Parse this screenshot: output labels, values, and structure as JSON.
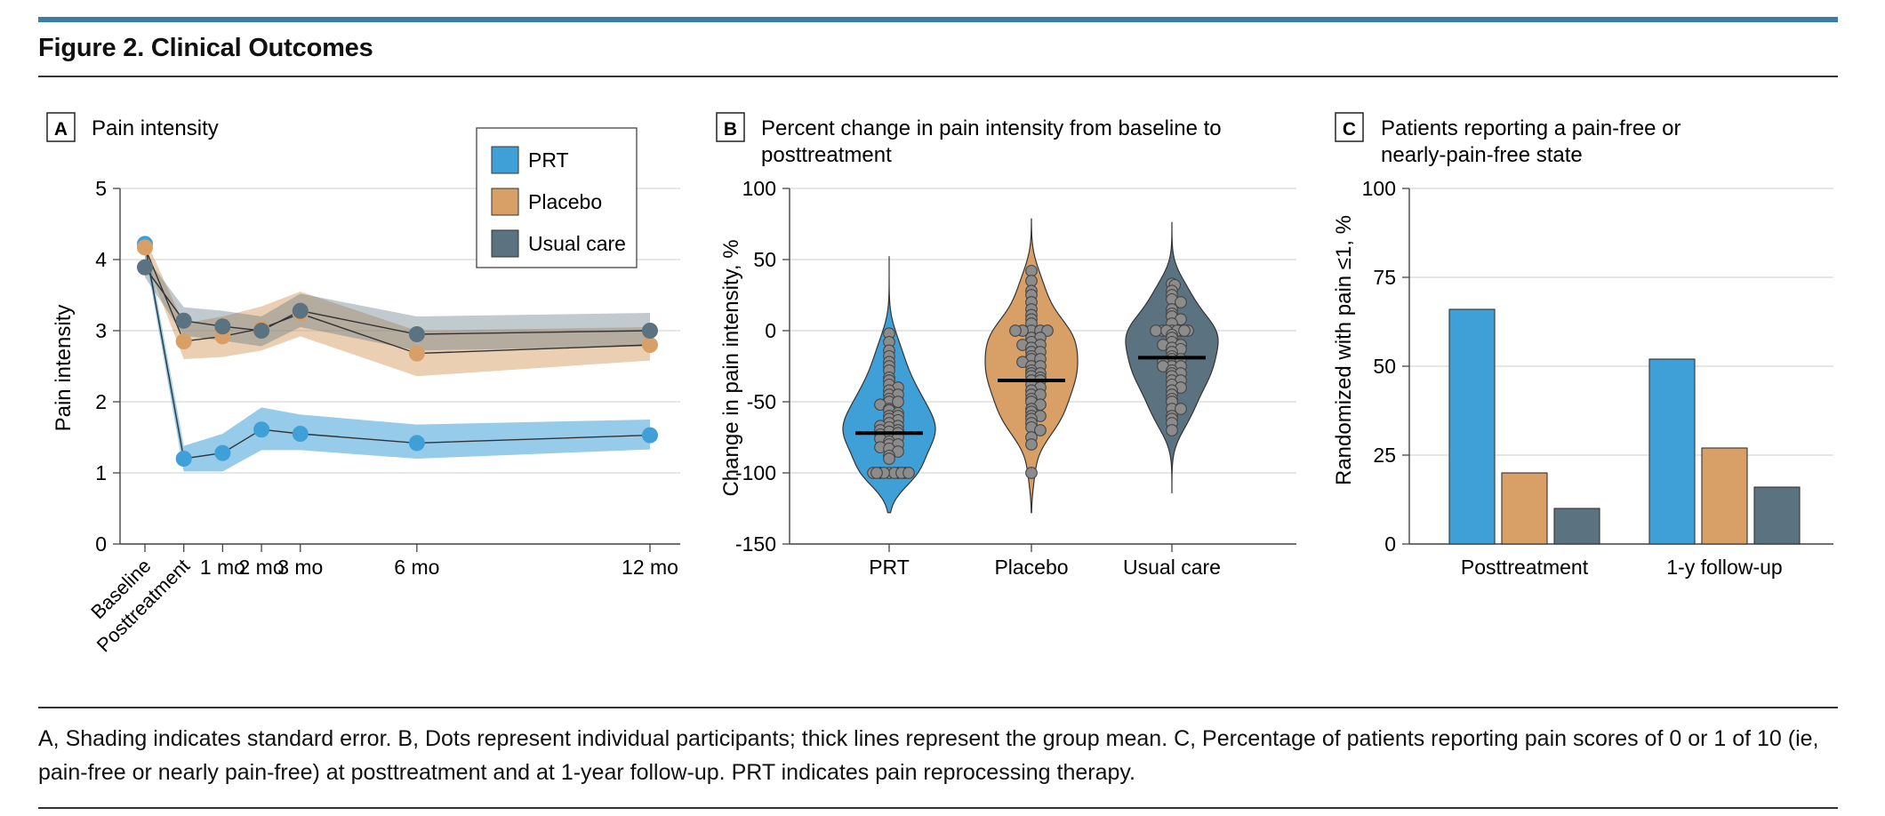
{
  "figure": {
    "title": "Figure 2. Clinical Outcomes",
    "caption": "A, Shading indicates standard error. B, Dots represent individual participants; thick lines represent the group mean. C, Percentage of patients reporting pain scores of 0 or 1 of 10 (ie, pain-free or nearly pain-free) at posttreatment and at 1-year follow-up. PRT indicates pain reprocessing therapy.",
    "colors": {
      "PRT": "#3fa0d8",
      "Placebo": "#d8a066",
      "Usual care": "#5b7380",
      "accent_bar": "#3b7fa7"
    }
  },
  "chart_data": [
    {
      "panel": "A",
      "type": "line",
      "title": "Pain intensity",
      "ylabel": "Pain intensity",
      "xlabel": "",
      "ylim": [
        0,
        5
      ],
      "yticks": [
        0,
        1,
        2,
        3,
        4,
        5
      ],
      "x_labels": [
        "Baseline",
        "Posttreatment",
        "1 mo",
        "2 mo",
        "3 mo",
        "6 mo",
        "12 mo"
      ],
      "x_rotated": [
        true,
        true,
        false,
        false,
        false,
        false,
        false
      ],
      "x_months": [
        -1,
        0,
        1,
        2,
        3,
        6,
        12
      ],
      "legend": {
        "placement": "top-right",
        "entries": [
          "PRT",
          "Placebo",
          "Usual care"
        ]
      },
      "series": [
        {
          "name": "PRT",
          "values": [
            4.22,
            1.2,
            1.28,
            1.61,
            1.55,
            1.42,
            1.53
          ],
          "lower": [
            4.1,
            1.02,
            1.02,
            1.32,
            1.32,
            1.2,
            1.33
          ],
          "upper": [
            4.35,
            1.38,
            1.55,
            1.92,
            1.82,
            1.68,
            1.75
          ]
        },
        {
          "name": "Placebo",
          "values": [
            4.17,
            2.85,
            2.92,
            3.03,
            3.24,
            2.68,
            2.8
          ],
          "lower": [
            4.03,
            2.6,
            2.63,
            2.72,
            2.92,
            2.36,
            2.58
          ],
          "upper": [
            4.3,
            3.1,
            3.2,
            3.34,
            3.55,
            3.0,
            3.05
          ]
        },
        {
          "name": "Usual care",
          "values": [
            3.89,
            3.14,
            3.06,
            3.0,
            3.28,
            2.95,
            3.0
          ],
          "lower": [
            3.75,
            2.93,
            2.86,
            2.78,
            3.05,
            2.72,
            2.78
          ],
          "upper": [
            4.05,
            3.33,
            3.28,
            3.2,
            3.52,
            3.2,
            3.25
          ]
        }
      ]
    },
    {
      "panel": "B",
      "type": "violin",
      "title": "Percent change in pain intensity from baseline to posttreatment",
      "ylabel": "Change in pain intensity, %",
      "ylim": [
        -150,
        100
      ],
      "yticks": [
        -150,
        -100,
        -50,
        0,
        50,
        100
      ],
      "categories": [
        "PRT",
        "Placebo",
        "Usual care"
      ],
      "means": [
        -72,
        -35,
        -19
      ],
      "ranges": [
        [
          -128,
          52
        ],
        [
          -128,
          79
        ],
        [
          -114,
          76
        ]
      ],
      "points": [
        [
          -2,
          -8,
          -14,
          -18,
          -22,
          -25,
          -28,
          -33,
          -35,
          -38,
          -40,
          -42,
          -45,
          -45,
          -48,
          -50,
          -50,
          -52,
          -55,
          -56,
          -58,
          -60,
          -60,
          -62,
          -63,
          -65,
          -67,
          -67,
          -68,
          -70,
          -70,
          -71,
          -72,
          -73,
          -75,
          -75,
          -76,
          -78,
          -80,
          -80,
          -82,
          -83,
          -85,
          -88,
          -90,
          -100,
          -100,
          -100,
          -100,
          -100,
          -100,
          -100,
          -100,
          -100,
          -100
        ],
        [
          42,
          35,
          28,
          25,
          20,
          15,
          11,
          8,
          5,
          0,
          0,
          0,
          0,
          0,
          -5,
          -5,
          -8,
          -10,
          -10,
          -12,
          -15,
          -15,
          -18,
          -20,
          -20,
          -22,
          -25,
          -25,
          -28,
          -30,
          -30,
          -32,
          -33,
          -35,
          -35,
          -38,
          -40,
          -42,
          -45,
          -45,
          -48,
          -50,
          -52,
          -55,
          -57,
          -60,
          -60,
          -62,
          -65,
          -68,
          -70,
          -75,
          -80,
          -100
        ],
        [
          33,
          32,
          28,
          25,
          22,
          20,
          15,
          12,
          10,
          8,
          5,
          0,
          0,
          0,
          0,
          0,
          0,
          0,
          0,
          -3,
          -5,
          -8,
          -10,
          -10,
          -12,
          -13,
          -15,
          -18,
          -20,
          -20,
          -22,
          -25,
          -25,
          -25,
          -28,
          -30,
          -30,
          -32,
          -35,
          -35,
          -38,
          -40,
          -42,
          -45,
          -48,
          -50,
          -55,
          -55,
          -60,
          -62,
          -65,
          -70
        ]
      ]
    },
    {
      "panel": "C",
      "type": "bar",
      "title": "Patients reporting a pain-free or nearly-pain-free state",
      "ylabel": "Randomized with pain ≤1, %",
      "ylim": [
        0,
        100
      ],
      "yticks": [
        0,
        25,
        50,
        75,
        100
      ],
      "categories": [
        "Posttreatment",
        "1-y follow-up"
      ],
      "series": [
        {
          "name": "PRT",
          "values": [
            66,
            52
          ]
        },
        {
          "name": "Placebo",
          "values": [
            20,
            27
          ]
        },
        {
          "name": "Usual care",
          "values": [
            10,
            16
          ]
        }
      ]
    }
  ]
}
